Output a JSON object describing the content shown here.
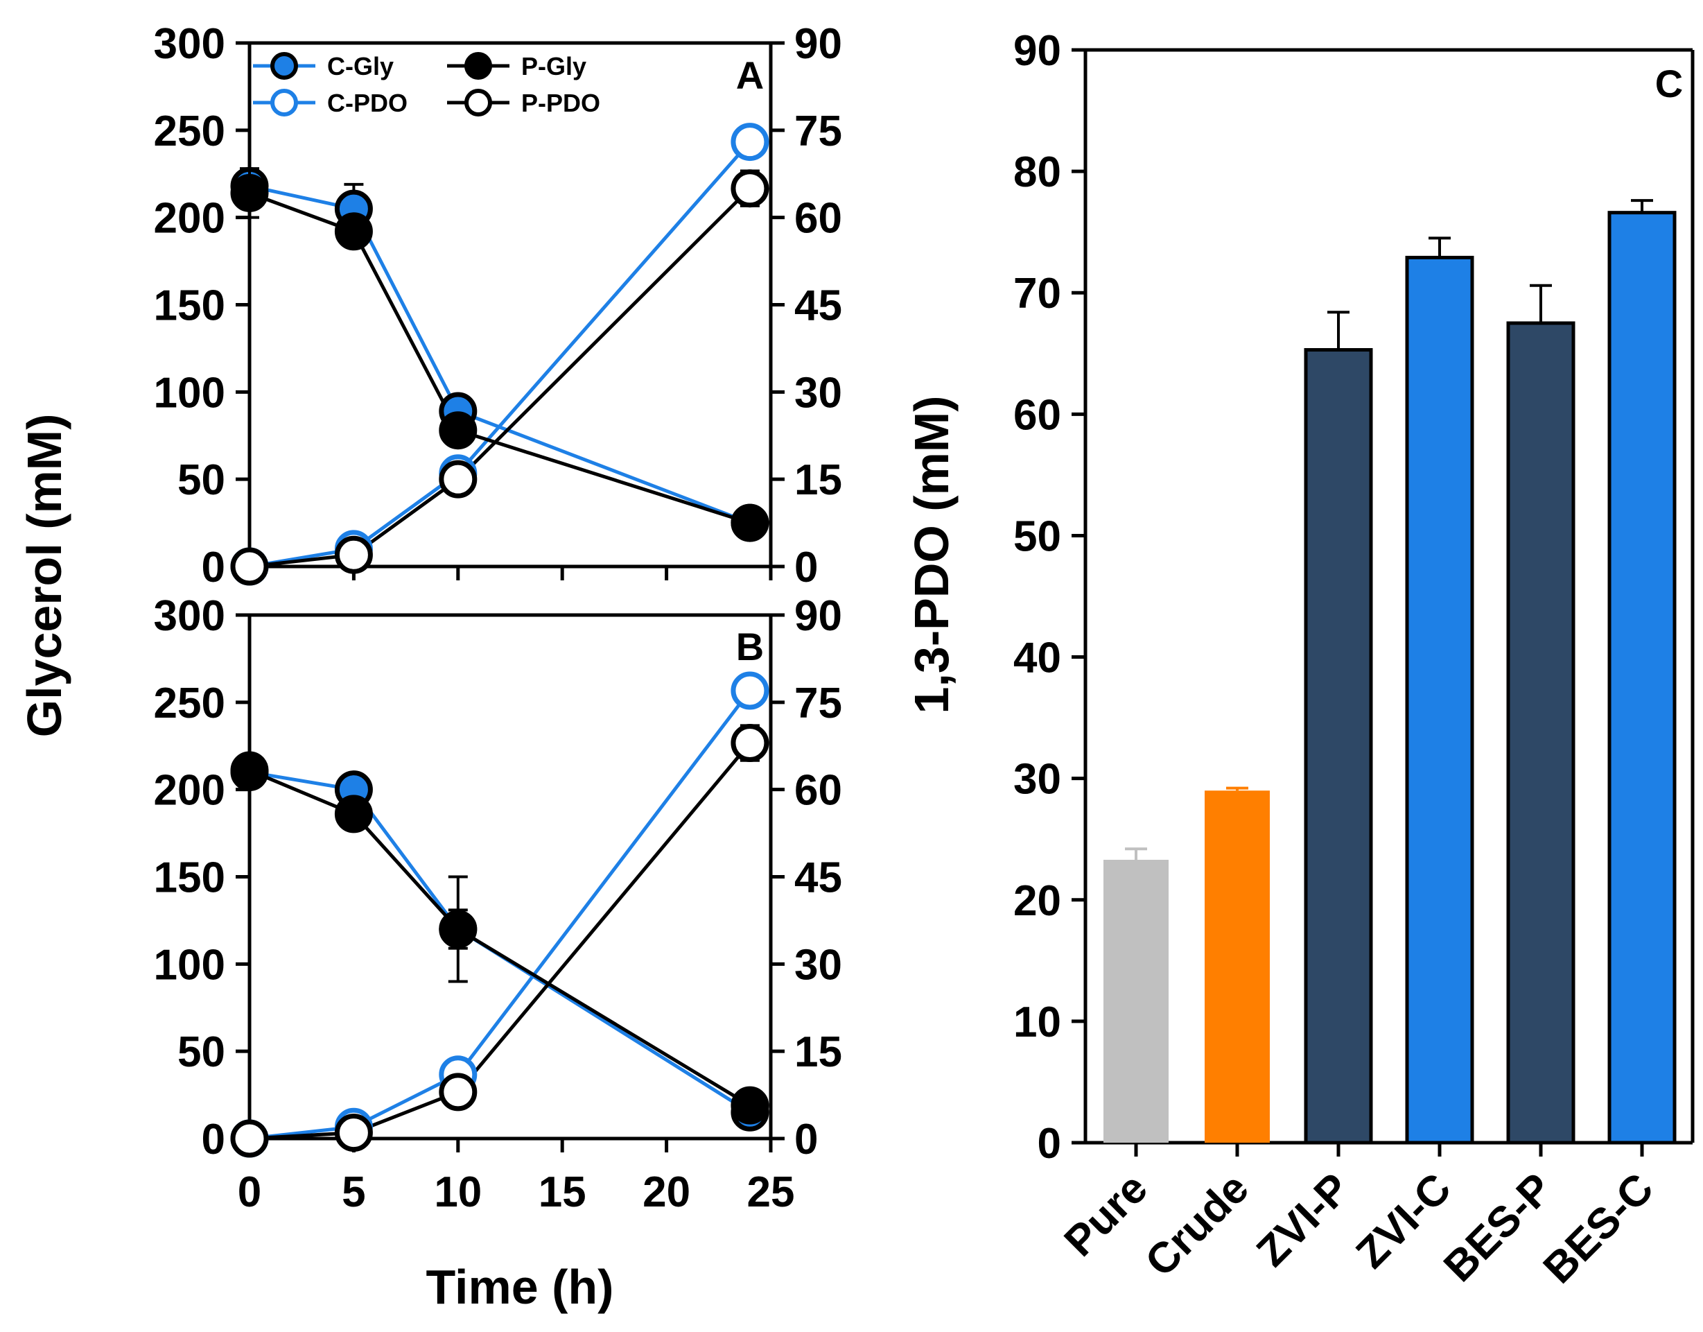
{
  "chart_data": [
    {
      "type": "line",
      "panel": "A",
      "xlim": [
        0,
        25
      ],
      "x_ticks": [
        0,
        5,
        10,
        15,
        20,
        25
      ],
      "ylim": [
        0,
        300
      ],
      "y_ticks": [
        0,
        50,
        100,
        150,
        200,
        250,
        300
      ],
      "y2lim": [
        0,
        90
      ],
      "y2_ticks": [
        0,
        15,
        30,
        45,
        60,
        75,
        90
      ],
      "legend": "top-left",
      "series": [
        {
          "name": "C-Gly",
          "axis": "left",
          "color": "#1e80e6",
          "fill": "#1e80e6",
          "line": "#1e80e6",
          "x": [
            0,
            5,
            10,
            24
          ],
          "values": [
            218,
            205,
            89,
            25
          ],
          "errors": [
            10,
            14,
            2,
            2
          ]
        },
        {
          "name": "C-PDO",
          "axis": "right",
          "color": "#1e80e6",
          "fill": "#ffffff",
          "line": "#1e80e6",
          "x": [
            0,
            5,
            10,
            24
          ],
          "values": [
            0,
            3,
            16,
            73
          ],
          "errors": [
            0,
            0,
            0,
            1
          ]
        },
        {
          "name": "P-Gly",
          "axis": "left",
          "color": "#000000",
          "fill": "#000000",
          "line": "#000000",
          "x": [
            0,
            5,
            10,
            24
          ],
          "values": [
            214,
            192,
            78,
            25
          ],
          "errors": [
            14,
            0,
            0,
            0
          ]
        },
        {
          "name": "P-PDO",
          "axis": "right",
          "color": "#000000",
          "fill": "#ffffff",
          "line": "#000000",
          "x": [
            0,
            5,
            10,
            24
          ],
          "values": [
            0,
            2,
            15,
            65
          ],
          "errors": [
            0,
            0,
            0,
            3
          ]
        }
      ]
    },
    {
      "type": "line",
      "panel": "B",
      "xlabel": "Time (h)",
      "xlim": [
        0,
        25
      ],
      "x_ticks": [
        0,
        5,
        10,
        15,
        20,
        25
      ],
      "ylim": [
        0,
        300
      ],
      "y_ticks": [
        0,
        50,
        100,
        150,
        200,
        250,
        300
      ],
      "y2lim": [
        0,
        90
      ],
      "y2_ticks": [
        0,
        15,
        30,
        45,
        60,
        75,
        90
      ],
      "series": [
        {
          "name": "C-Gly",
          "axis": "left",
          "color": "#1e80e6",
          "fill": "#1e80e6",
          "line": "#1e80e6",
          "x": [
            0,
            5,
            10,
            24
          ],
          "values": [
            210,
            200,
            120,
            15
          ],
          "errors": [
            0,
            0,
            30,
            0
          ]
        },
        {
          "name": "C-PDO",
          "axis": "right",
          "color": "#1e80e6",
          "fill": "#ffffff",
          "line": "#1e80e6",
          "x": [
            0,
            5,
            10,
            24
          ],
          "values": [
            0,
            2,
            11,
            77
          ],
          "errors": [
            0,
            0,
            0,
            0
          ]
        },
        {
          "name": "P-Gly",
          "axis": "left",
          "color": "#000000",
          "fill": "#000000",
          "line": "#000000",
          "x": [
            0,
            5,
            10,
            24
          ],
          "values": [
            211,
            186,
            120,
            19
          ],
          "errors": [
            0,
            0,
            11,
            0
          ]
        },
        {
          "name": "P-PDO",
          "axis": "right",
          "color": "#000000",
          "fill": "#ffffff",
          "line": "#000000",
          "x": [
            0,
            5,
            10,
            24
          ],
          "values": [
            0,
            1,
            8,
            68
          ],
          "errors": [
            0,
            0,
            0,
            3
          ]
        }
      ]
    },
    {
      "type": "bar",
      "panel": "C",
      "ylabel": "1,3-PDO (mM)",
      "ylim": [
        0,
        90
      ],
      "y_ticks": [
        0,
        10,
        20,
        30,
        40,
        50,
        60,
        70,
        80,
        90
      ],
      "categories": [
        "Pure",
        "Crude",
        "ZVI-P",
        "ZVI-C",
        "BES-P",
        "BES-C"
      ],
      "values": [
        23.3,
        29.0,
        65.3,
        72.9,
        67.5,
        76.6
      ],
      "errors": [
        0.9,
        0.2,
        3.1,
        1.6,
        3.1,
        1.0
      ],
      "colors": [
        "#c0c0c0",
        "#ff7f00",
        "#2e4866",
        "#1e80e6",
        "#2e4866",
        "#1e80e6"
      ],
      "outlined": [
        false,
        false,
        true,
        true,
        true,
        true
      ]
    }
  ],
  "shared": {
    "left_ylabel": "Glycerol (mM)",
    "right_ylabel": "1,3-PDO (mM)",
    "legend_entries": [
      "C-Gly",
      "P-Gly",
      "C-PDO",
      "P-PDO"
    ]
  }
}
